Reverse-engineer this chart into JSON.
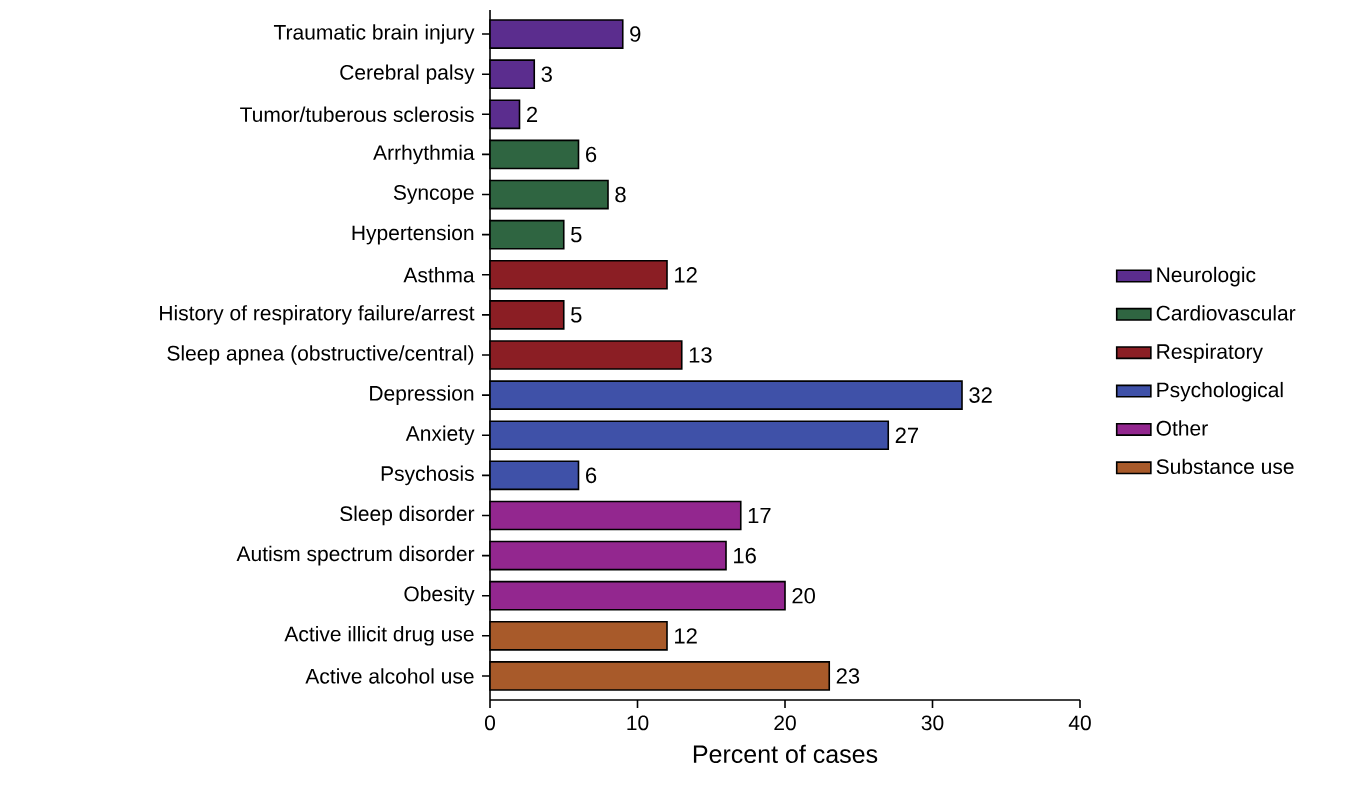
{
  "chart_data": {
    "type": "bar",
    "orientation": "horizontal",
    "xlabel": "Percent of cases",
    "categories": [
      "Traumatic brain injury",
      "Cerebral palsy",
      "Tumor/tuberous sclerosis",
      "Arrhythmia",
      "Syncope",
      "Hypertension",
      "Asthma",
      "History of respiratory failure/arrest",
      "Sleep apnea (obstructive/central)",
      "Depression",
      "Anxiety",
      "Psychosis",
      "Sleep disorder",
      "Autism spectrum disorder",
      "Obesity",
      "Active illicit drug use",
      "Active alcohol use"
    ],
    "series": [
      {
        "name": "Neurologic",
        "color": "#5b2d8e",
        "values": [
          9,
          3,
          2,
          null,
          null,
          null,
          null,
          null,
          null,
          null,
          null,
          null,
          null,
          null,
          null,
          null,
          null
        ]
      },
      {
        "name": "Cardiovascular",
        "color": "#2f6541",
        "values": [
          null,
          null,
          null,
          6,
          8,
          5,
          null,
          null,
          null,
          null,
          null,
          null,
          null,
          null,
          null,
          null,
          null
        ]
      },
      {
        "name": "Respiratory",
        "color": "#8b1e24",
        "values": [
          null,
          null,
          null,
          null,
          null,
          null,
          12,
          5,
          13,
          null,
          null,
          null,
          null,
          null,
          null,
          null,
          null
        ]
      },
      {
        "name": "Psychological",
        "color": "#3f51a8",
        "values": [
          null,
          null,
          null,
          null,
          null,
          null,
          null,
          null,
          null,
          32,
          27,
          6,
          null,
          null,
          null,
          null,
          null
        ]
      },
      {
        "name": "Other",
        "color": "#93278f",
        "values": [
          null,
          null,
          null,
          null,
          null,
          null,
          null,
          null,
          null,
          null,
          null,
          null,
          17,
          16,
          20,
          null,
          null
        ]
      },
      {
        "name": "Substance use",
        "color": "#a85a2a",
        "values": [
          null,
          null,
          null,
          null,
          null,
          null,
          null,
          null,
          null,
          null,
          null,
          null,
          null,
          null,
          null,
          12,
          23
        ]
      }
    ],
    "xlim": [
      0,
      40
    ],
    "xticks": [
      0,
      10,
      20,
      30,
      40
    ],
    "data_labels": true,
    "legend": "right",
    "grid": false
  }
}
